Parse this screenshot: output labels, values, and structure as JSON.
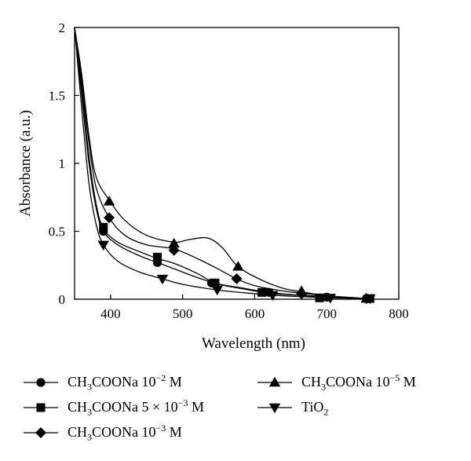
{
  "chart_data": {
    "type": "line",
    "xlabel": "Wavelength (nm)",
    "ylabel": "Absorbance (a.u.)",
    "xlim": [
      350,
      800
    ],
    "ylim": [
      0,
      2
    ],
    "x_ticks": [
      "400",
      "500",
      "600",
      "700",
      "800"
    ],
    "y_ticks": [
      "0",
      "0.5",
      "1",
      "1.5",
      "2"
    ],
    "grid": false,
    "legend_position": "bottom",
    "series": [
      {
        "name": "CH3COONa 10−2 M",
        "marker": "circle",
        "x": [
          350,
          360,
          370,
          380,
          390,
          410,
          440,
          465,
          490,
          520,
          550,
          580,
          620,
          660,
          700,
          750,
          765
        ],
        "y": [
          2.0,
          1.5,
          1.0,
          0.67,
          0.5,
          0.4,
          0.32,
          0.27,
          0.22,
          0.16,
          0.11,
          0.08,
          0.045,
          0.03,
          0.02,
          0.005,
          0.005
        ],
        "marker_x": [
          390,
          465,
          540,
          620,
          700,
          755
        ],
        "marker_y": [
          0.5,
          0.27,
          0.12,
          0.05,
          0.015,
          0.005
        ]
      },
      {
        "name": "CH3COONa 5 × 10−3 M",
        "marker": "square",
        "x": [
          350,
          360,
          370,
          380,
          390,
          410,
          440,
          465,
          490,
          520,
          545,
          580,
          620,
          660,
          700,
          750,
          765
        ],
        "y": [
          2.0,
          1.55,
          1.05,
          0.7,
          0.52,
          0.42,
          0.35,
          0.3,
          0.26,
          0.19,
          0.12,
          0.085,
          0.05,
          0.03,
          0.015,
          0.005,
          0.005
        ],
        "marker_x": [
          390,
          465,
          545,
          610,
          690,
          760
        ],
        "marker_y": [
          0.53,
          0.31,
          0.12,
          0.05,
          0.01,
          0.005
        ]
      },
      {
        "name": "CH3COONa 10−3 M",
        "marker": "diamond",
        "x": [
          350,
          360,
          370,
          380,
          398,
          420,
          450,
          488,
          520,
          550,
          575,
          600,
          640,
          665,
          700,
          755
        ],
        "y": [
          2.0,
          1.6,
          1.15,
          0.82,
          0.6,
          0.47,
          0.4,
          0.37,
          0.3,
          0.22,
          0.15,
          0.1,
          0.06,
          0.045,
          0.025,
          0.005
        ],
        "marker_x": [
          398,
          488,
          575,
          665,
          755
        ],
        "marker_y": [
          0.6,
          0.36,
          0.15,
          0.04,
          0.005
        ]
      },
      {
        "name": "CH3COONa 10−5 M",
        "marker": "triangle-up",
        "x": [
          350,
          360,
          370,
          380,
          398,
          420,
          450,
          488,
          510,
          535,
          555,
          577,
          610,
          640,
          665,
          700,
          755
        ],
        "y": [
          2.0,
          1.65,
          1.2,
          0.9,
          0.73,
          0.58,
          0.47,
          0.42,
          0.44,
          0.45,
          0.38,
          0.24,
          0.14,
          0.08,
          0.055,
          0.025,
          0.005
        ],
        "marker_x": [
          398,
          488,
          577,
          665,
          755
        ],
        "marker_y": [
          0.72,
          0.41,
          0.24,
          0.06,
          0.005
        ]
      },
      {
        "name": "TiO2",
        "marker": "triangle-down",
        "x": [
          350,
          360,
          370,
          380,
          390,
          410,
          440,
          472,
          500,
          545,
          580,
          625,
          660,
          705,
          760
        ],
        "y": [
          2.0,
          1.4,
          0.85,
          0.55,
          0.4,
          0.28,
          0.2,
          0.15,
          0.11,
          0.07,
          0.05,
          0.03,
          0.02,
          0.01,
          0.005
        ],
        "marker_x": [
          390,
          472,
          548,
          625,
          705,
          760
        ],
        "marker_y": [
          0.4,
          0.15,
          0.07,
          0.03,
          0.01,
          0.005
        ]
      }
    ]
  },
  "legend": {
    "items": [
      {
        "key": "s0",
        "prefix": "CH",
        "sub1": "3",
        "mid": "COONa 10",
        "sup": "−2",
        "suffix": " M"
      },
      {
        "key": "s1",
        "prefix": "CH",
        "sub1": "3",
        "mid": "COONa 5 × 10",
        "sup": "−3",
        "suffix": " M"
      },
      {
        "key": "s2",
        "prefix": "CH",
        "sub1": "3",
        "mid": "COONa 10",
        "sup": "−3",
        "suffix": " M"
      },
      {
        "key": "s3",
        "prefix": "CH",
        "sub1": "3",
        "mid": "COONa 10",
        "sup": "−5",
        "suffix": " M"
      },
      {
        "key": "s4",
        "prefix": "TiO",
        "sub1": "2",
        "mid": "",
        "sup": "",
        "suffix": ""
      }
    ]
  }
}
